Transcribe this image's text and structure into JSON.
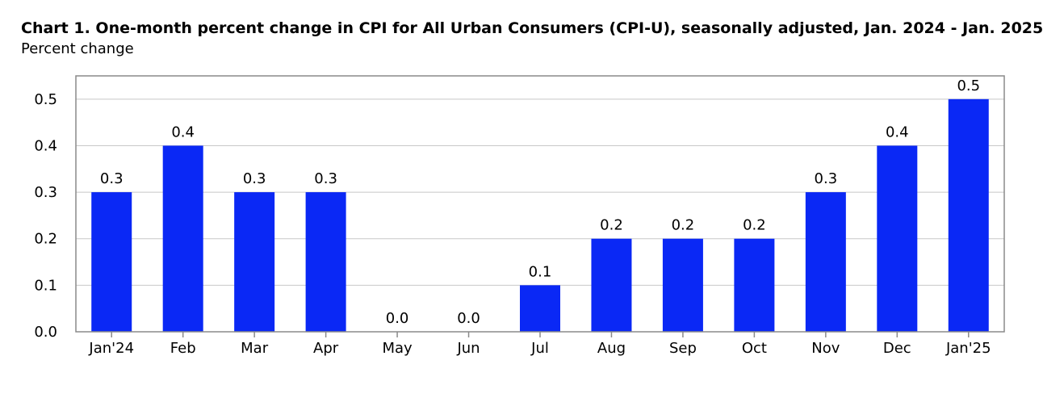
{
  "title": "Chart 1. One-month percent change in CPI for All Urban Consumers (CPI-U), seasonally adjusted, Jan. 2024 - Jan. 2025",
  "subtitle": "Percent change",
  "chart_data": {
    "type": "bar",
    "title": "Chart 1. One-month percent change in CPI for All Urban Consumers (CPI-U), seasonally adjusted, Jan. 2024 - Jan. 2025",
    "ylabel": "Percent change",
    "xlabel": "",
    "categories": [
      "Jan'24",
      "Feb",
      "Mar",
      "Apr",
      "May",
      "Jun",
      "Jul",
      "Aug",
      "Sep",
      "Oct",
      "Nov",
      "Dec",
      "Jan'25"
    ],
    "values": [
      0.3,
      0.4,
      0.3,
      0.3,
      0.0,
      0.0,
      0.1,
      0.2,
      0.2,
      0.2,
      0.3,
      0.4,
      0.5
    ],
    "data_labels": [
      "0.3",
      "0.4",
      "0.3",
      "0.3",
      "0.0",
      "0.0",
      "0.1",
      "0.2",
      "0.2",
      "0.2",
      "0.3",
      "0.4",
      "0.5"
    ],
    "ylim": [
      0,
      0.55
    ],
    "yticks": [
      0.0,
      0.1,
      0.2,
      0.3,
      0.4,
      0.5
    ],
    "ytick_labels": [
      "0.0",
      "0.1",
      "0.2",
      "0.3",
      "0.4",
      "0.5"
    ],
    "grid": true,
    "legend": "none",
    "bar_color": "#0a28f5"
  }
}
